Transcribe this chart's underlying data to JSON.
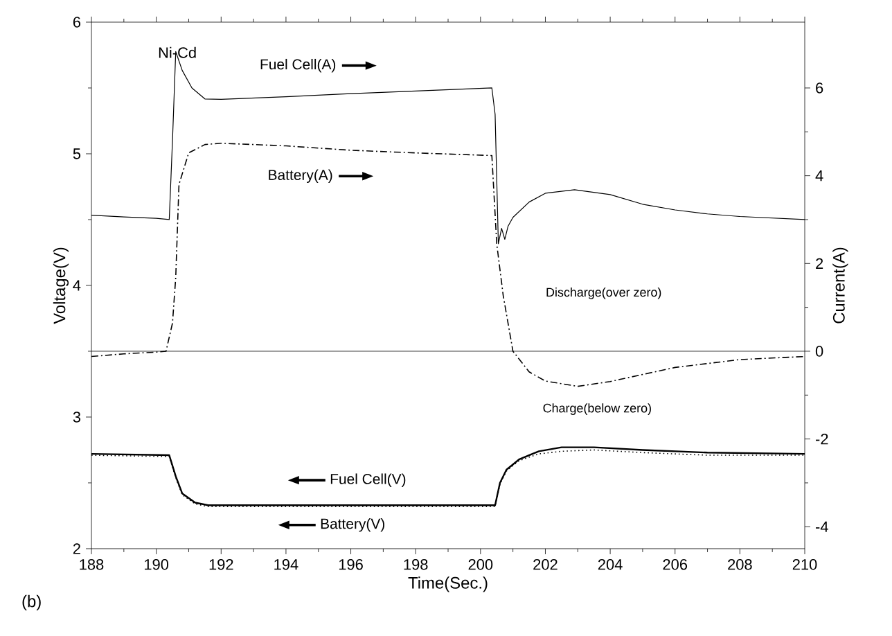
{
  "chart_data": {
    "type": "line",
    "xlabel": "Time(Sec.)",
    "ylabel": "Voltage(V)",
    "y2label": "Current(A)",
    "xlim": [
      188,
      210
    ],
    "xticks": [
      188,
      190,
      192,
      194,
      196,
      198,
      200,
      202,
      204,
      206,
      208,
      210
    ],
    "ylim": [
      2,
      6
    ],
    "yticks": [
      2,
      3,
      4,
      5,
      6
    ],
    "y2lim": [
      -4.5,
      7.5
    ],
    "y2ticks": [
      -4,
      -2,
      0,
      2,
      4,
      6
    ],
    "grid": false,
    "legend": "bottom",
    "marker": "none",
    "ref_lines": [
      {
        "axis": "y2",
        "value": 0,
        "color": "#000000"
      }
    ],
    "annotations": [
      "Ni-Cd",
      "Discharge(over zero)",
      "Charge(below zero)",
      "(b)"
    ],
    "series": [
      {
        "name": "Fuel Cell(A)",
        "axis": "y2",
        "color": "#000000",
        "line_style": "solid",
        "x": [
          188,
          189,
          190,
          190.4,
          190.5,
          190.6,
          190.8,
          191.1,
          191.5,
          192,
          194,
          196,
          198,
          200.35,
          200.45,
          200.55,
          200.65,
          200.75,
          200.85,
          201,
          201.5,
          202,
          202.9,
          204,
          205,
          206,
          207,
          208,
          210
        ],
        "values": [
          3.1,
          3.06,
          3.03,
          3.0,
          4.8,
          6.83,
          6.4,
          6.0,
          5.75,
          5.74,
          5.8,
          5.87,
          5.93,
          6.0,
          5.4,
          2.45,
          2.8,
          2.55,
          2.85,
          3.05,
          3.4,
          3.6,
          3.68,
          3.57,
          3.35,
          3.22,
          3.13,
          3.07,
          3.0
        ]
      },
      {
        "name": "Battery(A)",
        "axis": "y2",
        "color": "#000000",
        "line_style": "dashdot",
        "x": [
          188,
          189,
          190,
          190.3,
          190.5,
          190.6,
          190.7,
          191,
          191.5,
          192,
          194,
          196,
          198,
          200.35,
          200.5,
          200.7,
          201,
          201.5,
          202,
          203,
          204,
          205,
          206,
          207,
          208,
          210
        ],
        "values": [
          -0.12,
          -0.06,
          -0.02,
          0,
          0.64,
          1.68,
          3.8,
          4.52,
          4.71,
          4.74,
          4.68,
          4.58,
          4.52,
          4.46,
          2.45,
          1.27,
          0,
          -0.47,
          -0.68,
          -0.8,
          -0.69,
          -0.53,
          -0.37,
          -0.28,
          -0.19,
          -0.12
        ]
      },
      {
        "name": "Fuel Cell(V)",
        "color": "#000000",
        "line_style": "solid",
        "x": [
          188,
          190.4,
          190.6,
          190.8,
          191.2,
          191.6,
          200.45,
          200.6,
          200.8,
          201.2,
          201.8,
          202.5,
          203.5,
          205,
          207,
          210
        ],
        "values": [
          2.72,
          2.71,
          2.55,
          2.42,
          2.35,
          2.33,
          2.33,
          2.5,
          2.6,
          2.68,
          2.74,
          2.77,
          2.77,
          2.75,
          2.73,
          2.72
        ]
      },
      {
        "name": "Battery(V)",
        "color": "#000000",
        "line_style": "dotted",
        "x": [
          188,
          190.4,
          190.6,
          190.8,
          191.2,
          191.6,
          200.45,
          200.6,
          200.8,
          201.2,
          201.8,
          202.5,
          203.5,
          205,
          207,
          210
        ],
        "values": [
          2.71,
          2.7,
          2.54,
          2.41,
          2.34,
          2.32,
          2.32,
          2.49,
          2.59,
          2.67,
          2.72,
          2.74,
          2.75,
          2.73,
          2.71,
          2.71
        ]
      }
    ]
  }
}
